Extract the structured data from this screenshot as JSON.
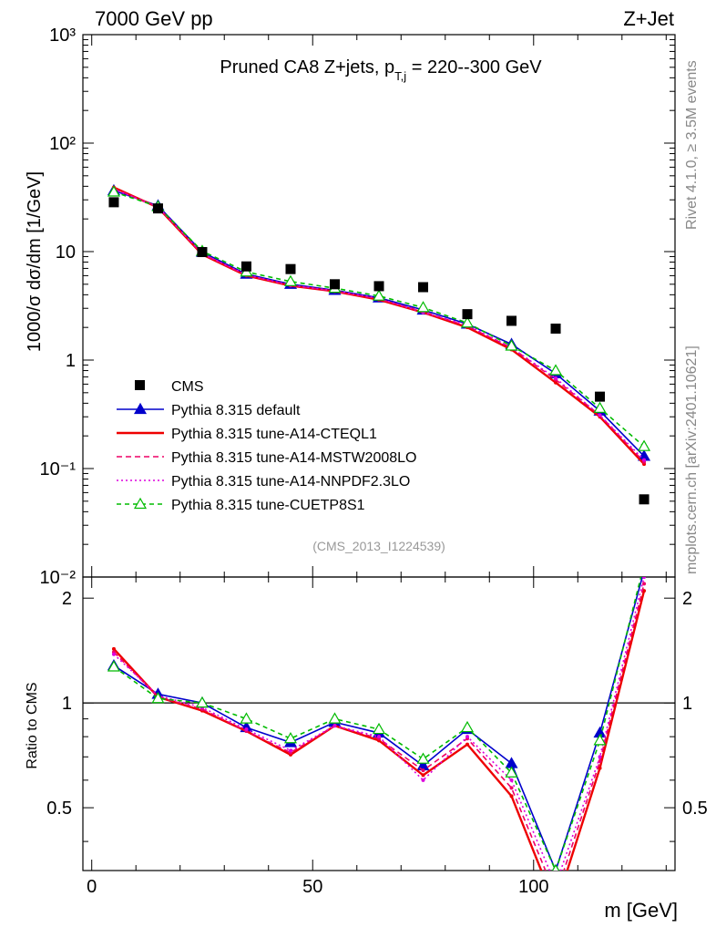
{
  "header": {
    "left": "7000 GeV pp",
    "right": "Z+Jet",
    "side_top": "Rivet 4.1.0, ≥ 3.5M events",
    "side_bottom": "mcplots.cern.ch [arXiv:2401.10621]"
  },
  "chart_data": {
    "type": "line",
    "title": "Pruned CA8 Z+jets, p",
    "title_sub": "T,j",
    "title_tail": " = 220--300 GeV",
    "analysis": "(CMS_2013_I1224539)",
    "xlabel": "m [GeV]",
    "ylabel_main": "1000/σ  dσ/dm [1/GeV]",
    "ylabel_ratio": "Ratio to CMS",
    "xlim": [
      -2,
      132
    ],
    "main_ylim": [
      0.01,
      1000
    ],
    "ratio_ylim": [
      0.33,
      2.3
    ],
    "main_yticks": [
      "10⁻²",
      "10⁻¹",
      "1",
      "10",
      "10²",
      "10³"
    ],
    "main_ytick_values": [
      0.01,
      0.1,
      1,
      10,
      100,
      1000
    ],
    "ratio_yticks": [
      "0.5",
      "1",
      "2"
    ],
    "ratio_ytick_values": [
      0.5,
      1,
      2
    ],
    "xticks": [
      "0",
      "50",
      "100"
    ],
    "xtick_values": [
      0,
      50,
      100
    ],
    "x": [
      5,
      15,
      25,
      35,
      45,
      55,
      65,
      75,
      85,
      95,
      105,
      115,
      125
    ],
    "data": {
      "name": "CMS",
      "values": [
        28.5,
        25.0,
        9.9,
        7.3,
        6.9,
        5.0,
        4.8,
        4.7,
        2.65,
        2.3,
        1.95,
        0.46,
        0.052
      ]
    },
    "series": [
      {
        "name": "Pythia 8.315 default",
        "color": "#0000cc",
        "dash": "",
        "marker": "triangle-filled",
        "values": [
          36.5,
          26.5,
          9.9,
          6.2,
          5.0,
          4.4,
          3.75,
          2.9,
          2.15,
          1.4,
          0.75,
          0.34,
          0.13
        ],
        "ratio": [
          1.28,
          1.06,
          1.0,
          0.85,
          0.77,
          0.88,
          0.82,
          0.66,
          0.84,
          0.67,
          0.33,
          0.82,
          2.4
        ]
      },
      {
        "name": "Pythia 8.315 tune-A14-CTEQL1",
        "color": "#ee0000",
        "dash": "",
        "marker": "none",
        "values": [
          39,
          25.5,
          9.4,
          6.0,
          4.85,
          4.3,
          3.6,
          2.75,
          2.0,
          1.25,
          0.62,
          0.3,
          0.11
        ],
        "ratio": [
          1.43,
          1.04,
          0.95,
          0.83,
          0.71,
          0.86,
          0.78,
          0.62,
          0.76,
          0.54,
          0.26,
          0.65,
          2.1
        ]
      },
      {
        "name": "Pythia 8.315 tune-A14-MSTW2008LO",
        "color": "#ee0066",
        "dash": "6,4",
        "marker": "none",
        "values": [
          38.2,
          25.8,
          9.5,
          6.05,
          4.9,
          4.3,
          3.65,
          2.8,
          2.05,
          1.3,
          0.66,
          0.31,
          0.115
        ],
        "ratio": [
          1.4,
          1.04,
          0.96,
          0.83,
          0.72,
          0.86,
          0.79,
          0.64,
          0.79,
          0.57,
          0.28,
          0.68,
          2.2
        ]
      },
      {
        "name": "Pythia 8.315 tune-A14-NNPDF2.3LO",
        "color": "#dd00dd",
        "dash": "2,3",
        "marker": "none",
        "values": [
          37.5,
          25.8,
          9.6,
          6.1,
          4.9,
          4.35,
          3.7,
          2.75,
          2.1,
          1.3,
          0.68,
          0.31,
          0.12
        ],
        "ratio": [
          1.38,
          1.05,
          0.97,
          0.84,
          0.73,
          0.86,
          0.8,
          0.6,
          0.8,
          0.6,
          0.3,
          0.7,
          2.3
        ]
      },
      {
        "name": "Pythia 8.315 tune-CUETP8S1",
        "color": "#00bb00",
        "dash": "5,4",
        "marker": "triangle-open",
        "values": [
          35.5,
          26.0,
          10.1,
          6.5,
          5.3,
          4.6,
          3.9,
          3.05,
          2.2,
          1.35,
          0.8,
          0.36,
          0.16
        ],
        "ratio": [
          1.27,
          1.03,
          1.0,
          0.9,
          0.79,
          0.9,
          0.84,
          0.69,
          0.85,
          0.63,
          0.33,
          0.78,
          2.5
        ]
      }
    ]
  }
}
